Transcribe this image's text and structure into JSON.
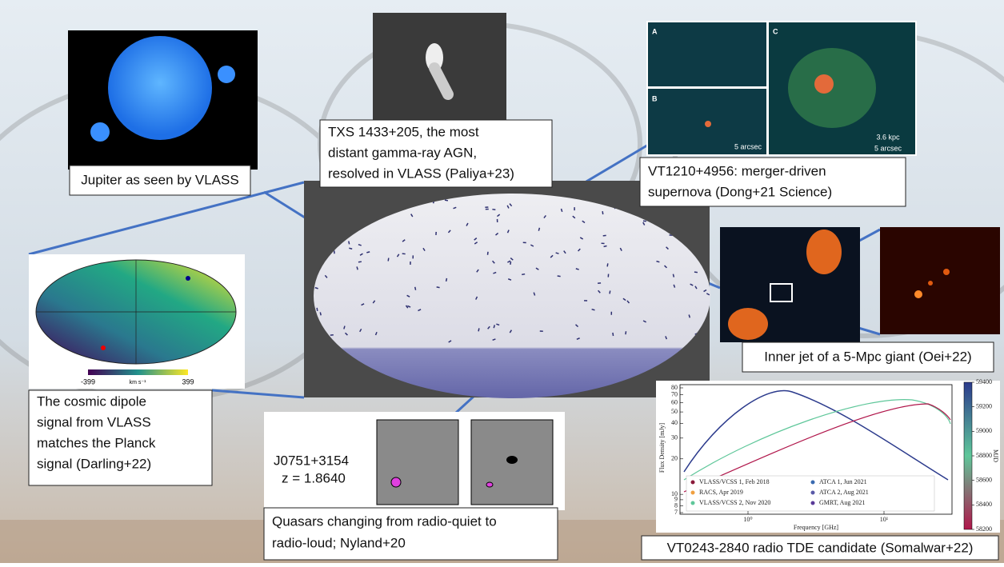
{
  "jupiter": {
    "caption": "Jupiter as seen by VLASS"
  },
  "txs": {
    "caption": [
      "TXS 1433+205, the most",
      "distant gamma-ray AGN,",
      "resolved in VLASS (Paliya+23)"
    ]
  },
  "vt1210": {
    "panels": [
      "A",
      "B",
      "C"
    ],
    "scale_left": "5 arcsec",
    "scale_right": [
      "3.6 kpc",
      "5 arcsec"
    ],
    "caption": [
      "VT1210+4956: merger-driven",
      "supernova (Dong+21 Science)"
    ]
  },
  "dipole": {
    "colorbar": {
      "min": "-399",
      "unit": "km s⁻¹",
      "max": "399"
    },
    "caption": [
      "The cosmic dipole",
      "signal from VLASS",
      "matches the Planck",
      "signal (Darling+22)"
    ]
  },
  "jet": {
    "caption": "Inner jet of a 5-Mpc giant (Oei+22)"
  },
  "quasar": {
    "name": "J0751+3154",
    "redshift": "z = 1.8640",
    "caption": [
      "Quasars changing from radio-quiet to",
      "radio-loud; Nyland+20"
    ]
  },
  "tde": {
    "y_label": "Flux Density [mJy]",
    "x_label": "Frequency [GHz]",
    "colorbar_label": "MJD",
    "yticks": [
      80,
      70,
      60,
      50,
      40,
      30,
      20,
      10,
      9,
      8,
      7
    ],
    "xticks": [
      {
        "value": 1,
        "label": "10⁰"
      },
      {
        "value": 10,
        "label": "10¹"
      }
    ],
    "colorbar_ticks": [
      59400,
      59200,
      59000,
      58800,
      58600,
      58400,
      58200
    ],
    "legend": [
      "VLASS/VCSS 1, Feb 2018",
      "RACS, Apr 2019",
      "VLASS/VCSS 2, Nov 2020",
      "ATCA 1, Jun 2021",
      "ATCA 2, Aug 2021",
      "GMRT, Aug 2021"
    ],
    "caption": "VT0243-2840 radio TDE candidate (Somalwar+22)"
  }
}
